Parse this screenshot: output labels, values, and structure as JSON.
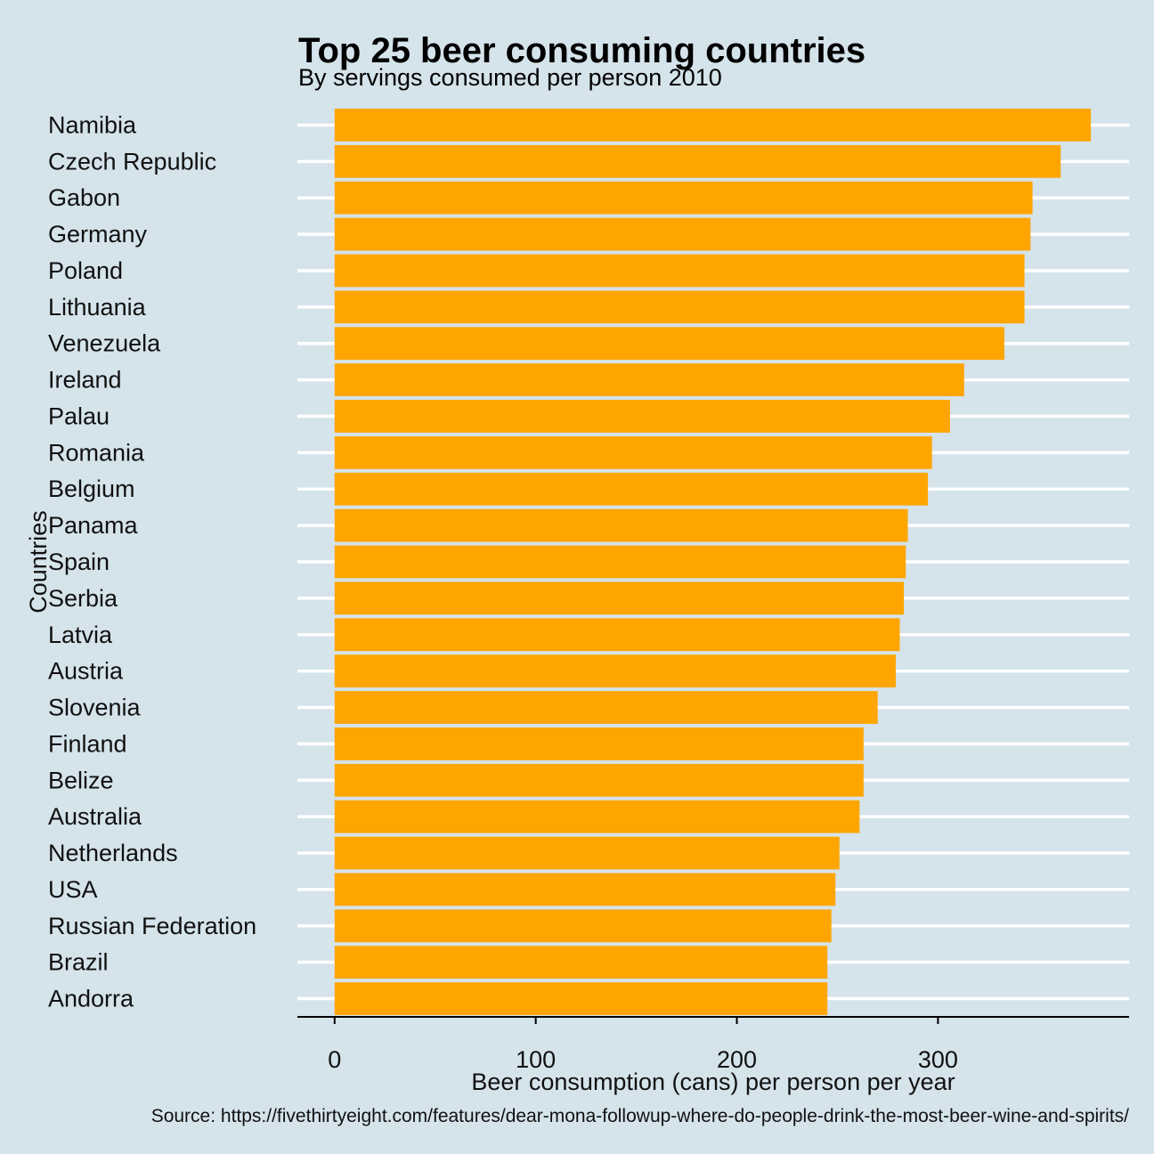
{
  "chart_data": {
    "type": "bar",
    "orientation": "horizontal",
    "title": "Top 25 beer consuming countries",
    "subtitle": "By servings consumed per person 2010",
    "xlabel": "Beer consumption (cans) per person per year",
    "ylabel": "Countries",
    "caption": "Source: https://fivethirtyeight.com/features/dear-mona-followup-where-do-people-drink-the-most-beer-wine-and-spirits/",
    "categories": [
      "Namibia",
      "Czech Republic",
      "Gabon",
      "Germany",
      "Poland",
      "Lithuania",
      "Venezuela",
      "Ireland",
      "Palau",
      "Romania",
      "Belgium",
      "Panama",
      "Spain",
      "Serbia",
      "Latvia",
      "Austria",
      "Slovenia",
      "Finland",
      "Belize",
      "Australia",
      "Netherlands",
      "USA",
      "Russian Federation",
      "Brazil",
      "Andorra"
    ],
    "values": [
      376,
      361,
      347,
      346,
      343,
      343,
      333,
      313,
      306,
      297,
      295,
      285,
      284,
      283,
      281,
      279,
      270,
      263,
      263,
      261,
      251,
      249,
      247,
      245,
      245
    ],
    "xlim": [
      -18.5,
      395
    ],
    "xticks": [
      0,
      100,
      200,
      300
    ],
    "xtick_labels": [
      "0",
      "100",
      "200",
      "300"
    ],
    "bar_color": "#ffa500",
    "grid": "horizontal major lines, white",
    "background": "#d5e3eb"
  }
}
